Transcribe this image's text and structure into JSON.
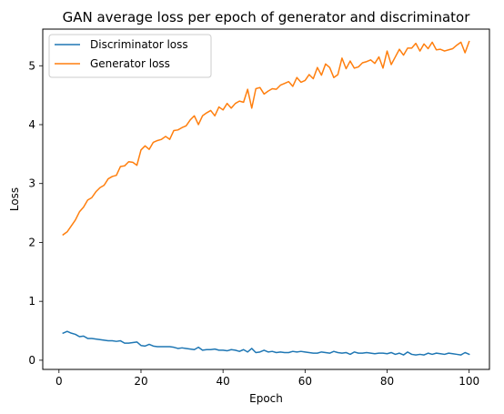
{
  "chart_data": {
    "type": "line",
    "title": "GAN average loss per epoch of generator and discriminator",
    "xlabel": "Epoch",
    "ylabel": "Loss",
    "xlim": [
      -3.95,
      104.95
    ],
    "ylim": [
      -0.156,
      5.622
    ],
    "xticks": [
      0,
      20,
      40,
      60,
      80,
      100
    ],
    "yticks": [
      0,
      1,
      2,
      3,
      4,
      5
    ],
    "grid": false,
    "legend_position": "upper-left",
    "colors": {
      "discriminator": "#1f77b4",
      "generator": "#ff7f0e"
    },
    "x": [
      1,
      2,
      3,
      4,
      5,
      6,
      7,
      8,
      9,
      10,
      11,
      12,
      13,
      14,
      15,
      16,
      17,
      18,
      19,
      20,
      21,
      22,
      23,
      24,
      25,
      26,
      27,
      28,
      29,
      30,
      31,
      32,
      33,
      34,
      35,
      36,
      37,
      38,
      39,
      40,
      41,
      42,
      43,
      44,
      45,
      46,
      47,
      48,
      49,
      50,
      51,
      52,
      53,
      54,
      55,
      56,
      57,
      58,
      59,
      60,
      61,
      62,
      63,
      64,
      65,
      66,
      67,
      68,
      69,
      70,
      71,
      72,
      73,
      74,
      75,
      76,
      77,
      78,
      79,
      80,
      81,
      82,
      83,
      84,
      85,
      86,
      87,
      88,
      89,
      90,
      91,
      92,
      93,
      94,
      95,
      96,
      97,
      98,
      99,
      100
    ],
    "series": [
      {
        "name": "Discriminator loss",
        "color": "#1f77b4",
        "values": [
          0.46,
          0.49,
          0.46,
          0.44,
          0.4,
          0.41,
          0.37,
          0.37,
          0.36,
          0.35,
          0.34,
          0.33,
          0.33,
          0.32,
          0.33,
          0.29,
          0.29,
          0.3,
          0.31,
          0.25,
          0.24,
          0.27,
          0.24,
          0.23,
          0.23,
          0.23,
          0.23,
          0.22,
          0.2,
          0.21,
          0.2,
          0.19,
          0.18,
          0.22,
          0.17,
          0.18,
          0.18,
          0.19,
          0.17,
          0.17,
          0.16,
          0.18,
          0.17,
          0.15,
          0.18,
          0.14,
          0.2,
          0.13,
          0.14,
          0.17,
          0.14,
          0.15,
          0.13,
          0.14,
          0.13,
          0.13,
          0.15,
          0.14,
          0.15,
          0.14,
          0.13,
          0.12,
          0.12,
          0.14,
          0.13,
          0.12,
          0.15,
          0.13,
          0.12,
          0.13,
          0.1,
          0.14,
          0.12,
          0.12,
          0.13,
          0.12,
          0.11,
          0.12,
          0.12,
          0.11,
          0.13,
          0.1,
          0.12,
          0.09,
          0.14,
          0.1,
          0.09,
          0.1,
          0.09,
          0.12,
          0.1,
          0.12,
          0.11,
          0.1,
          0.12,
          0.11,
          0.1,
          0.09,
          0.13,
          0.1
        ]
      },
      {
        "name": "Generator loss",
        "color": "#ff7f0e",
        "values": [
          2.13,
          2.18,
          2.28,
          2.38,
          2.52,
          2.6,
          2.72,
          2.76,
          2.86,
          2.93,
          2.97,
          3.08,
          3.12,
          3.14,
          3.29,
          3.3,
          3.37,
          3.36,
          3.31,
          3.57,
          3.64,
          3.58,
          3.7,
          3.73,
          3.75,
          3.8,
          3.75,
          3.9,
          3.91,
          3.95,
          3.98,
          4.08,
          4.15,
          4.0,
          4.15,
          4.2,
          4.24,
          4.15,
          4.3,
          4.25,
          4.36,
          4.28,
          4.36,
          4.4,
          4.38,
          4.6,
          4.28,
          4.61,
          4.63,
          4.52,
          4.57,
          4.61,
          4.6,
          4.67,
          4.7,
          4.73,
          4.65,
          4.8,
          4.72,
          4.75,
          4.85,
          4.78,
          4.97,
          4.84,
          5.03,
          4.97,
          4.8,
          4.85,
          5.13,
          4.95,
          5.08,
          4.96,
          4.98,
          5.05,
          5.07,
          5.1,
          5.04,
          5.15,
          4.96,
          5.25,
          5.02,
          5.15,
          5.28,
          5.18,
          5.3,
          5.3,
          5.38,
          5.25,
          5.37,
          5.29,
          5.4,
          5.27,
          5.28,
          5.25,
          5.27,
          5.29,
          5.35,
          5.4,
          5.22,
          5.41
        ]
      }
    ]
  }
}
